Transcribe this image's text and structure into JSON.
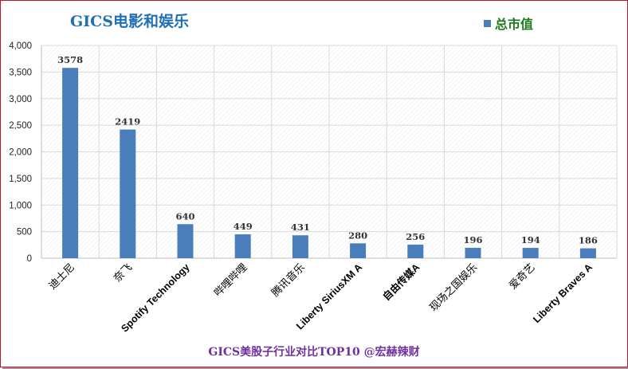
{
  "chart_data": {
    "type": "bar",
    "title": "GICS电影和娱乐",
    "legend": [
      "总市值"
    ],
    "legend_position": "top-right",
    "categories": [
      "迪士尼",
      "奈飞",
      "Spotify Technology",
      "哔哩哔哩",
      "腾讯音乐",
      "Liberty SiriusXM A",
      "自由传媒A",
      "现场之国娱乐",
      "爱奇艺",
      "Liberty Braves A"
    ],
    "series": [
      {
        "name": "总市值",
        "values": [
          3578,
          2419,
          640,
          449,
          431,
          280,
          256,
          196,
          194,
          186
        ]
      }
    ],
    "ylim": [
      0,
      4000
    ],
    "yticks": [
      "0",
      "500",
      "1,000",
      "1,500",
      "2,000",
      "2,500",
      "3,000",
      "3,500",
      "4,000"
    ],
    "grid": true,
    "footer": "GICS美股子行业对比TOP10  @宏赫辣财"
  },
  "colors": {
    "bar": "#4a7ebb",
    "title": "#1f6fb5",
    "legend_text": "#1e7a1e",
    "footer": "#7030a0",
    "border": "#c8102e",
    "grid": "#d9d9d9"
  }
}
